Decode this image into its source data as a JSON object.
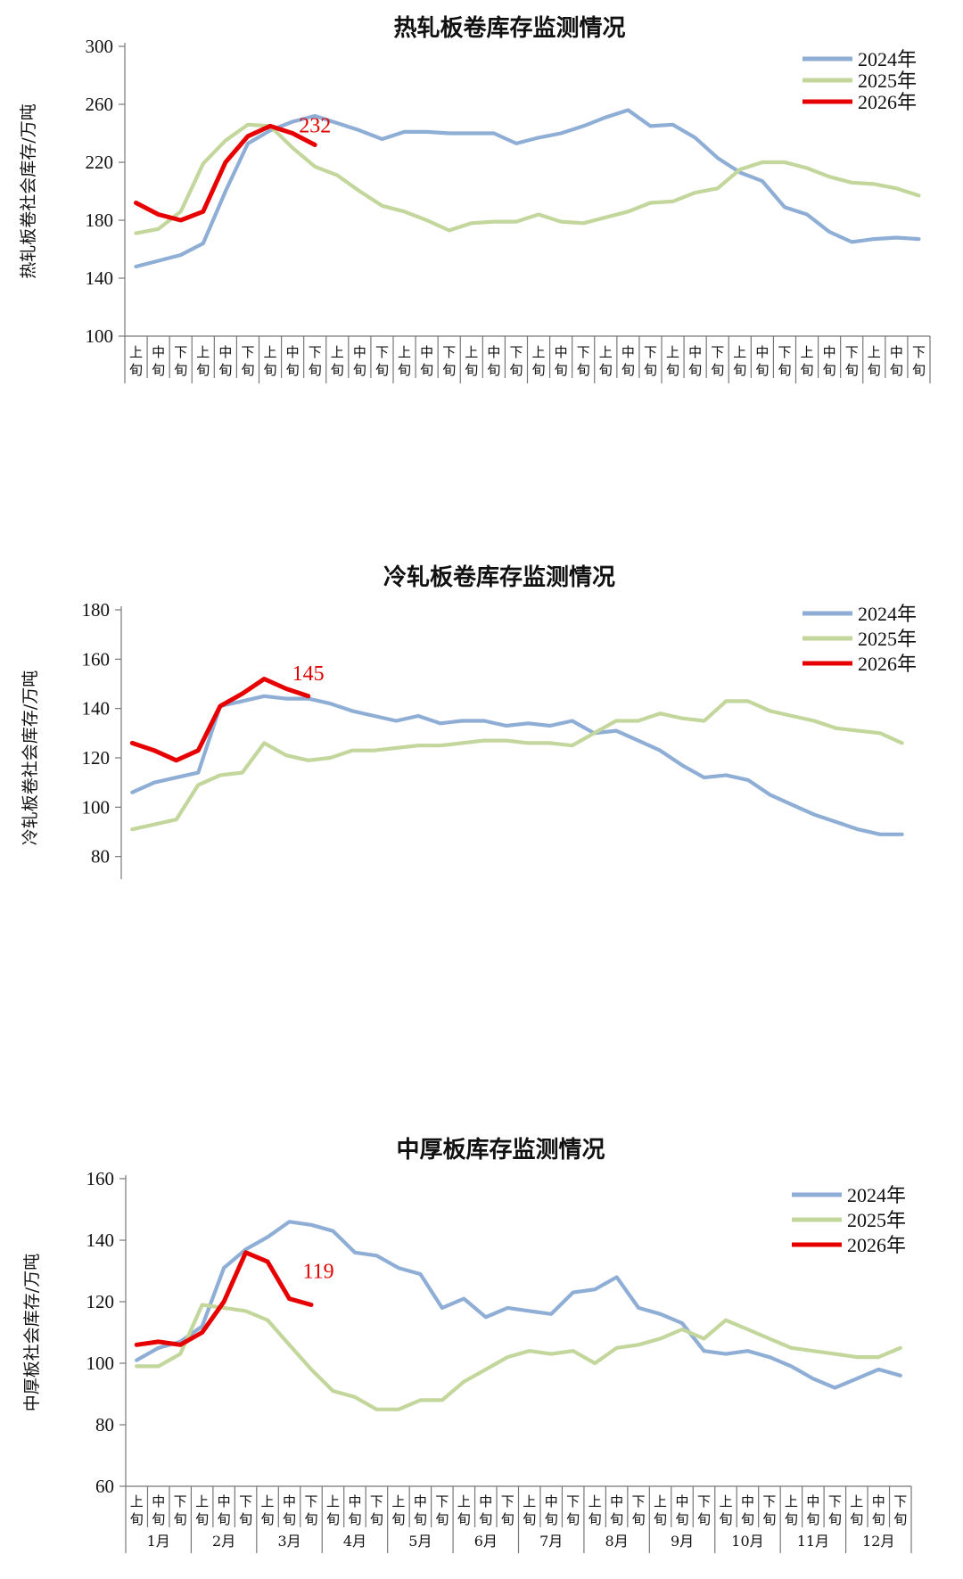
{
  "colors": {
    "s2024": "#8eaed6",
    "s2025": "#c3d69b",
    "s2026": "#e60000"
  },
  "xcategories": [
    "上旬",
    "中旬",
    "下旬"
  ],
  "months": [
    "1月",
    "2月",
    "3月",
    "4月",
    "5月",
    "6月",
    "7月",
    "8月",
    "9月",
    "10月",
    "11月",
    "12月"
  ],
  "chart_data": [
    {
      "type": "line",
      "title": "热轧板卷库存监测情况",
      "ylabel": "热轧板卷社会库存/万吨",
      "ylim": [
        100,
        300
      ],
      "yticks": [
        100,
        140,
        180,
        220,
        260,
        300
      ],
      "legend_position": "top-right",
      "annotation": {
        "text": "232",
        "x_index": 8,
        "value": 232
      },
      "series": [
        {
          "name": "2024年",
          "color_key": "s2024",
          "values": [
            148,
            152,
            156,
            164,
            200,
            233,
            242,
            248,
            252,
            247,
            242,
            236,
            241,
            241,
            240,
            240,
            240,
            233,
            237,
            240,
            245,
            251,
            256,
            245,
            246,
            237,
            223,
            213,
            207,
            189,
            184,
            172,
            165,
            167,
            168,
            167
          ]
        },
        {
          "name": "2025年",
          "color_key": "s2025",
          "values": [
            171,
            174,
            186,
            219,
            235,
            246,
            245,
            230,
            217,
            211,
            200,
            190,
            186,
            180,
            173,
            178,
            179,
            179,
            184,
            179,
            178,
            182,
            186,
            192,
            193,
            199,
            202,
            215,
            220,
            220,
            216,
            210,
            206,
            205,
            202,
            197
          ]
        },
        {
          "name": "2026年",
          "color_key": "s2026",
          "values": [
            192,
            184,
            180,
            186,
            220,
            238,
            245,
            240,
            232
          ]
        }
      ]
    },
    {
      "type": "line",
      "title": "冷轧板卷库存监测情况",
      "ylabel": "冷轧板卷社会库存/万吨",
      "ylim": [
        60,
        180
      ],
      "yticks": [
        60,
        80,
        100,
        120,
        140,
        160,
        180
      ],
      "legend_position": "top-right",
      "annotation": {
        "text": "145",
        "x_index": 8,
        "value": 145
      },
      "series": [
        {
          "name": "2024年",
          "color_key": "s2024",
          "values": [
            106,
            110,
            112,
            114,
            141,
            143,
            145,
            144,
            144,
            142,
            139,
            137,
            135,
            137,
            134,
            135,
            135,
            133,
            134,
            133,
            135,
            130,
            131,
            127,
            123,
            117,
            112,
            113,
            111,
            105,
            101,
            97,
            94,
            91,
            89,
            89
          ]
        },
        {
          "name": "2025年",
          "color_key": "s2025",
          "values": [
            91,
            93,
            95,
            109,
            113,
            114,
            126,
            121,
            119,
            120,
            123,
            123,
            124,
            125,
            125,
            126,
            127,
            127,
            126,
            126,
            125,
            130,
            135,
            135,
            138,
            136,
            135,
            143,
            143,
            139,
            137,
            135,
            132,
            131,
            130,
            126
          ]
        },
        {
          "name": "2026年",
          "color_key": "s2026",
          "values": [
            126,
            123,
            119,
            123,
            141,
            146,
            152,
            148,
            145
          ]
        }
      ]
    },
    {
      "type": "line",
      "title": "中厚板库存监测情况",
      "ylabel": "中厚板社会库存/万吨",
      "ylim": [
        60,
        160
      ],
      "yticks": [
        60,
        80,
        100,
        120,
        140,
        160
      ],
      "legend_position": "top-right",
      "annotation": {
        "text": "119",
        "x_index": 8,
        "value": 119
      },
      "series": [
        {
          "name": "2024年",
          "color_key": "s2024",
          "values": [
            101,
            105,
            107,
            112,
            131,
            137,
            141,
            146,
            145,
            143,
            136,
            135,
            131,
            129,
            118,
            121,
            115,
            118,
            117,
            116,
            123,
            124,
            128,
            118,
            116,
            113,
            104,
            103,
            104,
            102,
            99,
            95,
            92,
            95,
            98,
            96
          ]
        },
        {
          "name": "2025年",
          "color_key": "s2025",
          "values": [
            99,
            99,
            103,
            119,
            118,
            117,
            114,
            106,
            98,
            91,
            89,
            85,
            85,
            88,
            88,
            94,
            98,
            102,
            104,
            103,
            104,
            100,
            105,
            106,
            108,
            111,
            108,
            114,
            111,
            108,
            105,
            104,
            103,
            102,
            102,
            105
          ]
        },
        {
          "name": "2026年",
          "color_key": "s2026",
          "values": [
            106,
            107,
            106,
            110,
            120,
            136,
            133,
            121,
            119
          ]
        }
      ]
    }
  ]
}
